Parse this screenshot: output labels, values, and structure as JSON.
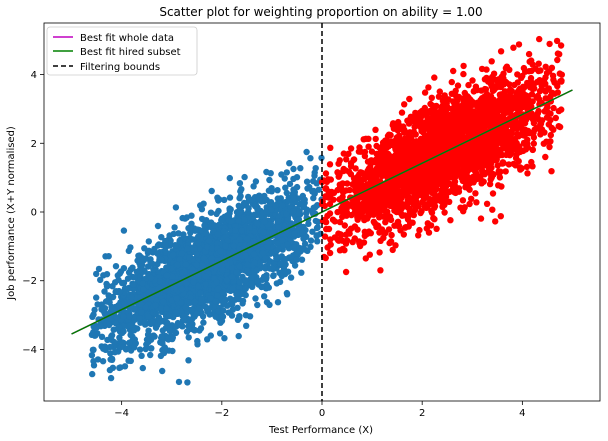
{
  "chart_data": {
    "type": "scatter",
    "title": "Scatter plot for weighting proportion on ability = 1.00",
    "xlabel": "Test Performance (X)",
    "ylabel": "Job performance (X+Y normalised)",
    "xlim": [
      -5.55,
      5.55
    ],
    "ylim": [
      -5.5,
      5.5
    ],
    "xticks": [
      -4,
      -2,
      0,
      2,
      4
    ],
    "yticks": [
      -4,
      -2,
      0,
      2,
      4
    ],
    "xtick_labels": [
      "−4",
      "−2",
      "0",
      "2",
      "4"
    ],
    "ytick_labels": [
      "−4",
      "−2",
      "0",
      "2",
      "4"
    ],
    "grid": false,
    "legend_placement": "top-left",
    "series": [
      {
        "name": "Best fit whole data",
        "kind": "line",
        "color": "#bf00bf",
        "x": [
          -5.0,
          5.0
        ],
        "y": [
          -3.55,
          3.55
        ]
      },
      {
        "name": "Best fit hired subset",
        "kind": "line",
        "color": "#008000",
        "x": [
          -5.0,
          5.0
        ],
        "y": [
          -3.55,
          3.55
        ]
      },
      {
        "name": "Filtering bounds",
        "kind": "vline",
        "color": "#000000",
        "dash": "dashed",
        "x": 0.0
      },
      {
        "kind": "scatter_cloud",
        "color": "#1f77b4",
        "x_range": [
          -4.6,
          0.0
        ],
        "slope": 0.71,
        "spread": 1.05,
        "points": 2600
      },
      {
        "kind": "scatter_cloud",
        "color": "#ff0000",
        "x_range": [
          0.0,
          4.8
        ],
        "slope": 0.71,
        "spread": 1.05,
        "points": 2600
      }
    ]
  }
}
